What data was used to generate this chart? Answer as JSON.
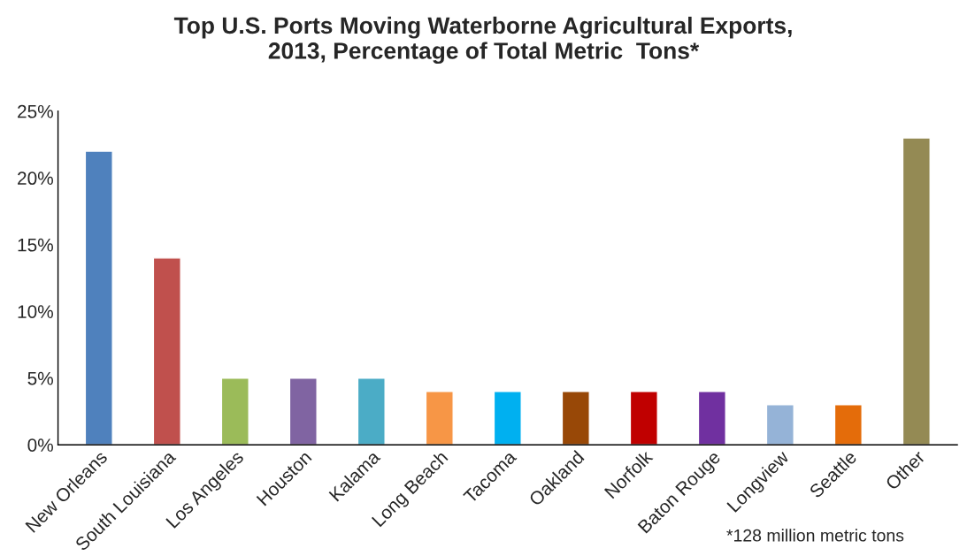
{
  "chart_data": {
    "type": "bar",
    "title": "Top U.S. Ports Moving Waterborne Agricultural Exports,\n2013, Percentage of Total Metric  Tons*",
    "categories": [
      "New Orleans",
      "South Louisiana",
      "Los Angeles",
      "Houston",
      "Kalama",
      "Long Beach",
      "Tacoma",
      "Oakland",
      "Norfolk",
      "Baton Rouge",
      "Longview",
      "Seattle",
      "Other"
    ],
    "values": [
      22,
      14,
      5,
      5,
      5,
      4,
      4,
      4,
      4,
      4,
      3,
      3,
      23
    ],
    "colors": [
      "#4f81bd",
      "#c0504d",
      "#9bbb59",
      "#8064a2",
      "#4bacc6",
      "#f79646",
      "#00b0f0",
      "#984807",
      "#c00000",
      "#7030a0",
      "#95b3d7",
      "#e46c0a",
      "#948a54"
    ],
    "ylim": [
      0,
      25
    ],
    "yticks": [
      {
        "value": 0,
        "label": "0%"
      },
      {
        "value": 5,
        "label": "5%"
      },
      {
        "value": 10,
        "label": "10%"
      },
      {
        "value": 15,
        "label": "15%"
      },
      {
        "value": 20,
        "label": "20%"
      },
      {
        "value": 25,
        "label": "25%"
      }
    ],
    "grid": false,
    "annotations": [
      "*128 million metric tons"
    ]
  }
}
